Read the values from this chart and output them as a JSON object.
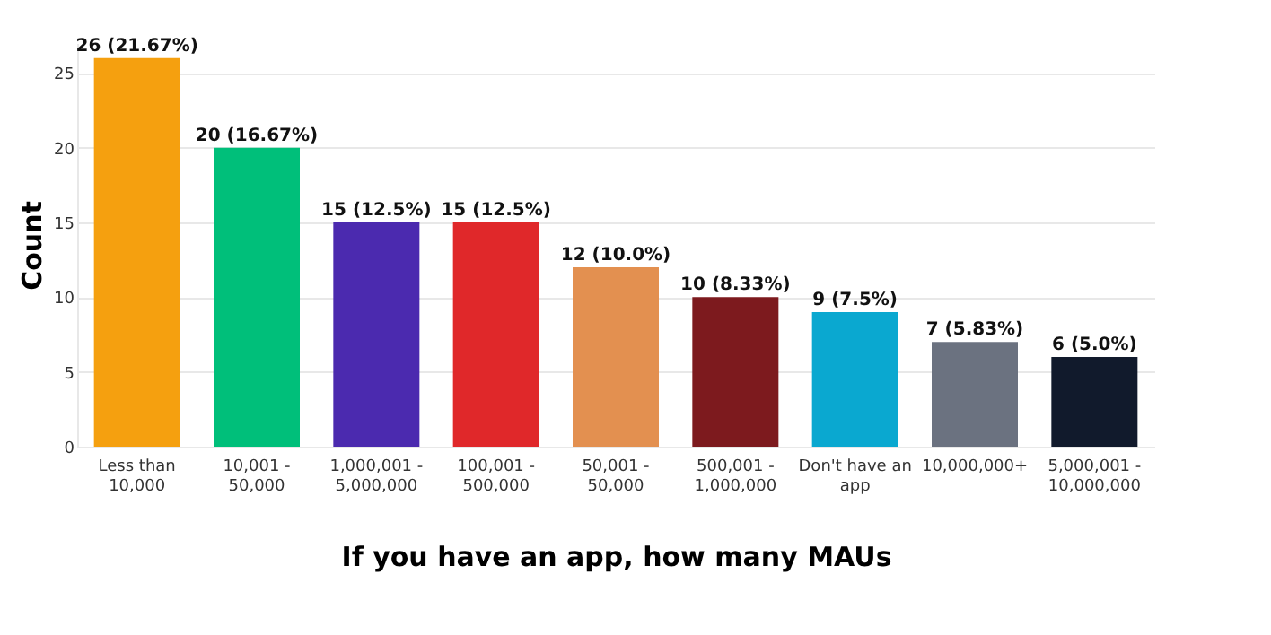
{
  "chart_data": {
    "type": "bar",
    "xlabel": "If you have an app, how many MAUs",
    "ylabel": "Count",
    "categories": [
      "Less than 10,000",
      "10,001 - 50,000",
      "1,000,001 - 5,000,000",
      "100,001 - 500,000",
      "50,001 - 50,000",
      "500,001 - 1,000,000",
      "Don't have an app",
      "10,000,000+",
      "5,000,001 - 10,000,000"
    ],
    "values": [
      26,
      20,
      15,
      15,
      12,
      10,
      9,
      7,
      6
    ],
    "colors": [
      "#f5a00f",
      "#00bf7a",
      "#4b2aaf",
      "#e0282a",
      "#e39050",
      "#7d1a1e",
      "#0aa8d0",
      "#6b7280",
      "#111a2c"
    ],
    "value_labels": [
      "26 (21.67%)",
      "20 (16.67%)",
      "15 (12.5%)",
      "15 (12.5%)",
      "12 (10.0%)",
      "10 (8.33%)",
      "9 (7.5%)",
      "7 (5.83%)",
      "6 (5.0%)"
    ],
    "ylim": [
      0,
      27
    ],
    "yticks": [
      0,
      5,
      10,
      15,
      20,
      25
    ],
    "grid": "y"
  }
}
